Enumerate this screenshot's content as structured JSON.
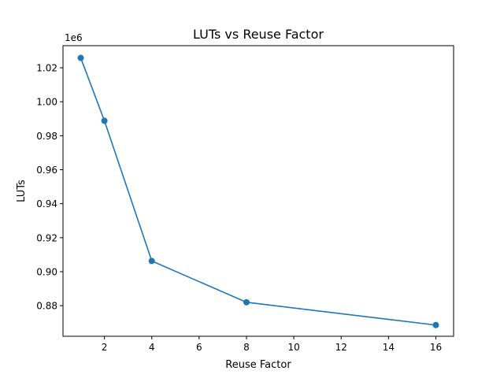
{
  "chart_data": {
    "type": "line",
    "title": "LUTs vs Reuse Factor",
    "xlabel": "Reuse Factor",
    "ylabel": "LUTs",
    "y_offset_label": "1e6",
    "xlim": [
      0.25,
      16.75
    ],
    "ylim": [
      0.862,
      1.033
    ],
    "x_ticks": [
      2,
      4,
      6,
      8,
      10,
      12,
      14,
      16
    ],
    "x_tick_labels": [
      "2",
      "4",
      "6",
      "8",
      "10",
      "12",
      "14",
      "16"
    ],
    "y_ticks": [
      0.88,
      0.9,
      0.92,
      0.94,
      0.96,
      0.98,
      1.0,
      1.02
    ],
    "y_tick_labels": [
      "0.88",
      "0.90",
      "0.92",
      "0.94",
      "0.96",
      "0.98",
      "1.00",
      "1.02"
    ],
    "grid": false,
    "series": [
      {
        "color": "#1f77b4",
        "marker": "circle",
        "x": [
          1,
          2,
          4,
          8,
          16
        ],
        "y": [
          1.0258,
          0.9888,
          0.9063,
          0.882,
          0.8686
        ]
      }
    ]
  }
}
